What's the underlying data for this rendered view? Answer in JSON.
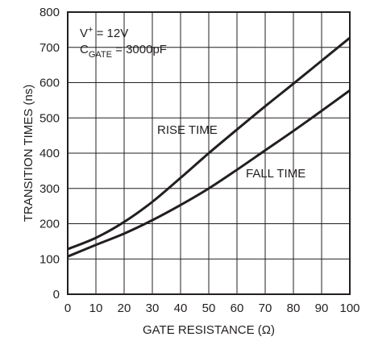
{
  "chart_data": {
    "type": "line",
    "xlabel": "GATE RESISTANCE (Ω)",
    "ylabel": "TRANSITION TIMES (ns)",
    "xlim": [
      0,
      100
    ],
    "ylim": [
      0,
      800
    ],
    "x_ticks": [
      0,
      10,
      20,
      30,
      40,
      50,
      60,
      70,
      80,
      90,
      100
    ],
    "y_ticks": [
      0,
      100,
      200,
      300,
      400,
      500,
      600,
      700,
      800
    ],
    "grid": true,
    "conditions": {
      "line1_prefix": "V",
      "line1_sup": "+",
      "line1_suffix": " = 12V",
      "line2_prefix": "C",
      "line2_sub": "GATE",
      "line2_suffix": " = 3000pF"
    },
    "series": [
      {
        "name": "RISE TIME",
        "x": [
          0,
          10,
          20,
          30,
          40,
          50,
          60,
          70,
          80,
          90,
          100
        ],
        "y": [
          128,
          160,
          205,
          262,
          330,
          400,
          467,
          533,
          597,
          662,
          727
        ]
      },
      {
        "name": "FALL TIME",
        "x": [
          0,
          10,
          20,
          30,
          40,
          50,
          60,
          70,
          80,
          90,
          100
        ],
        "y": [
          107,
          140,
          172,
          210,
          253,
          300,
          353,
          408,
          463,
          520,
          578
        ]
      }
    ],
    "series_label_positions": [
      "RISE TIME",
      "FALL TIME"
    ]
  }
}
